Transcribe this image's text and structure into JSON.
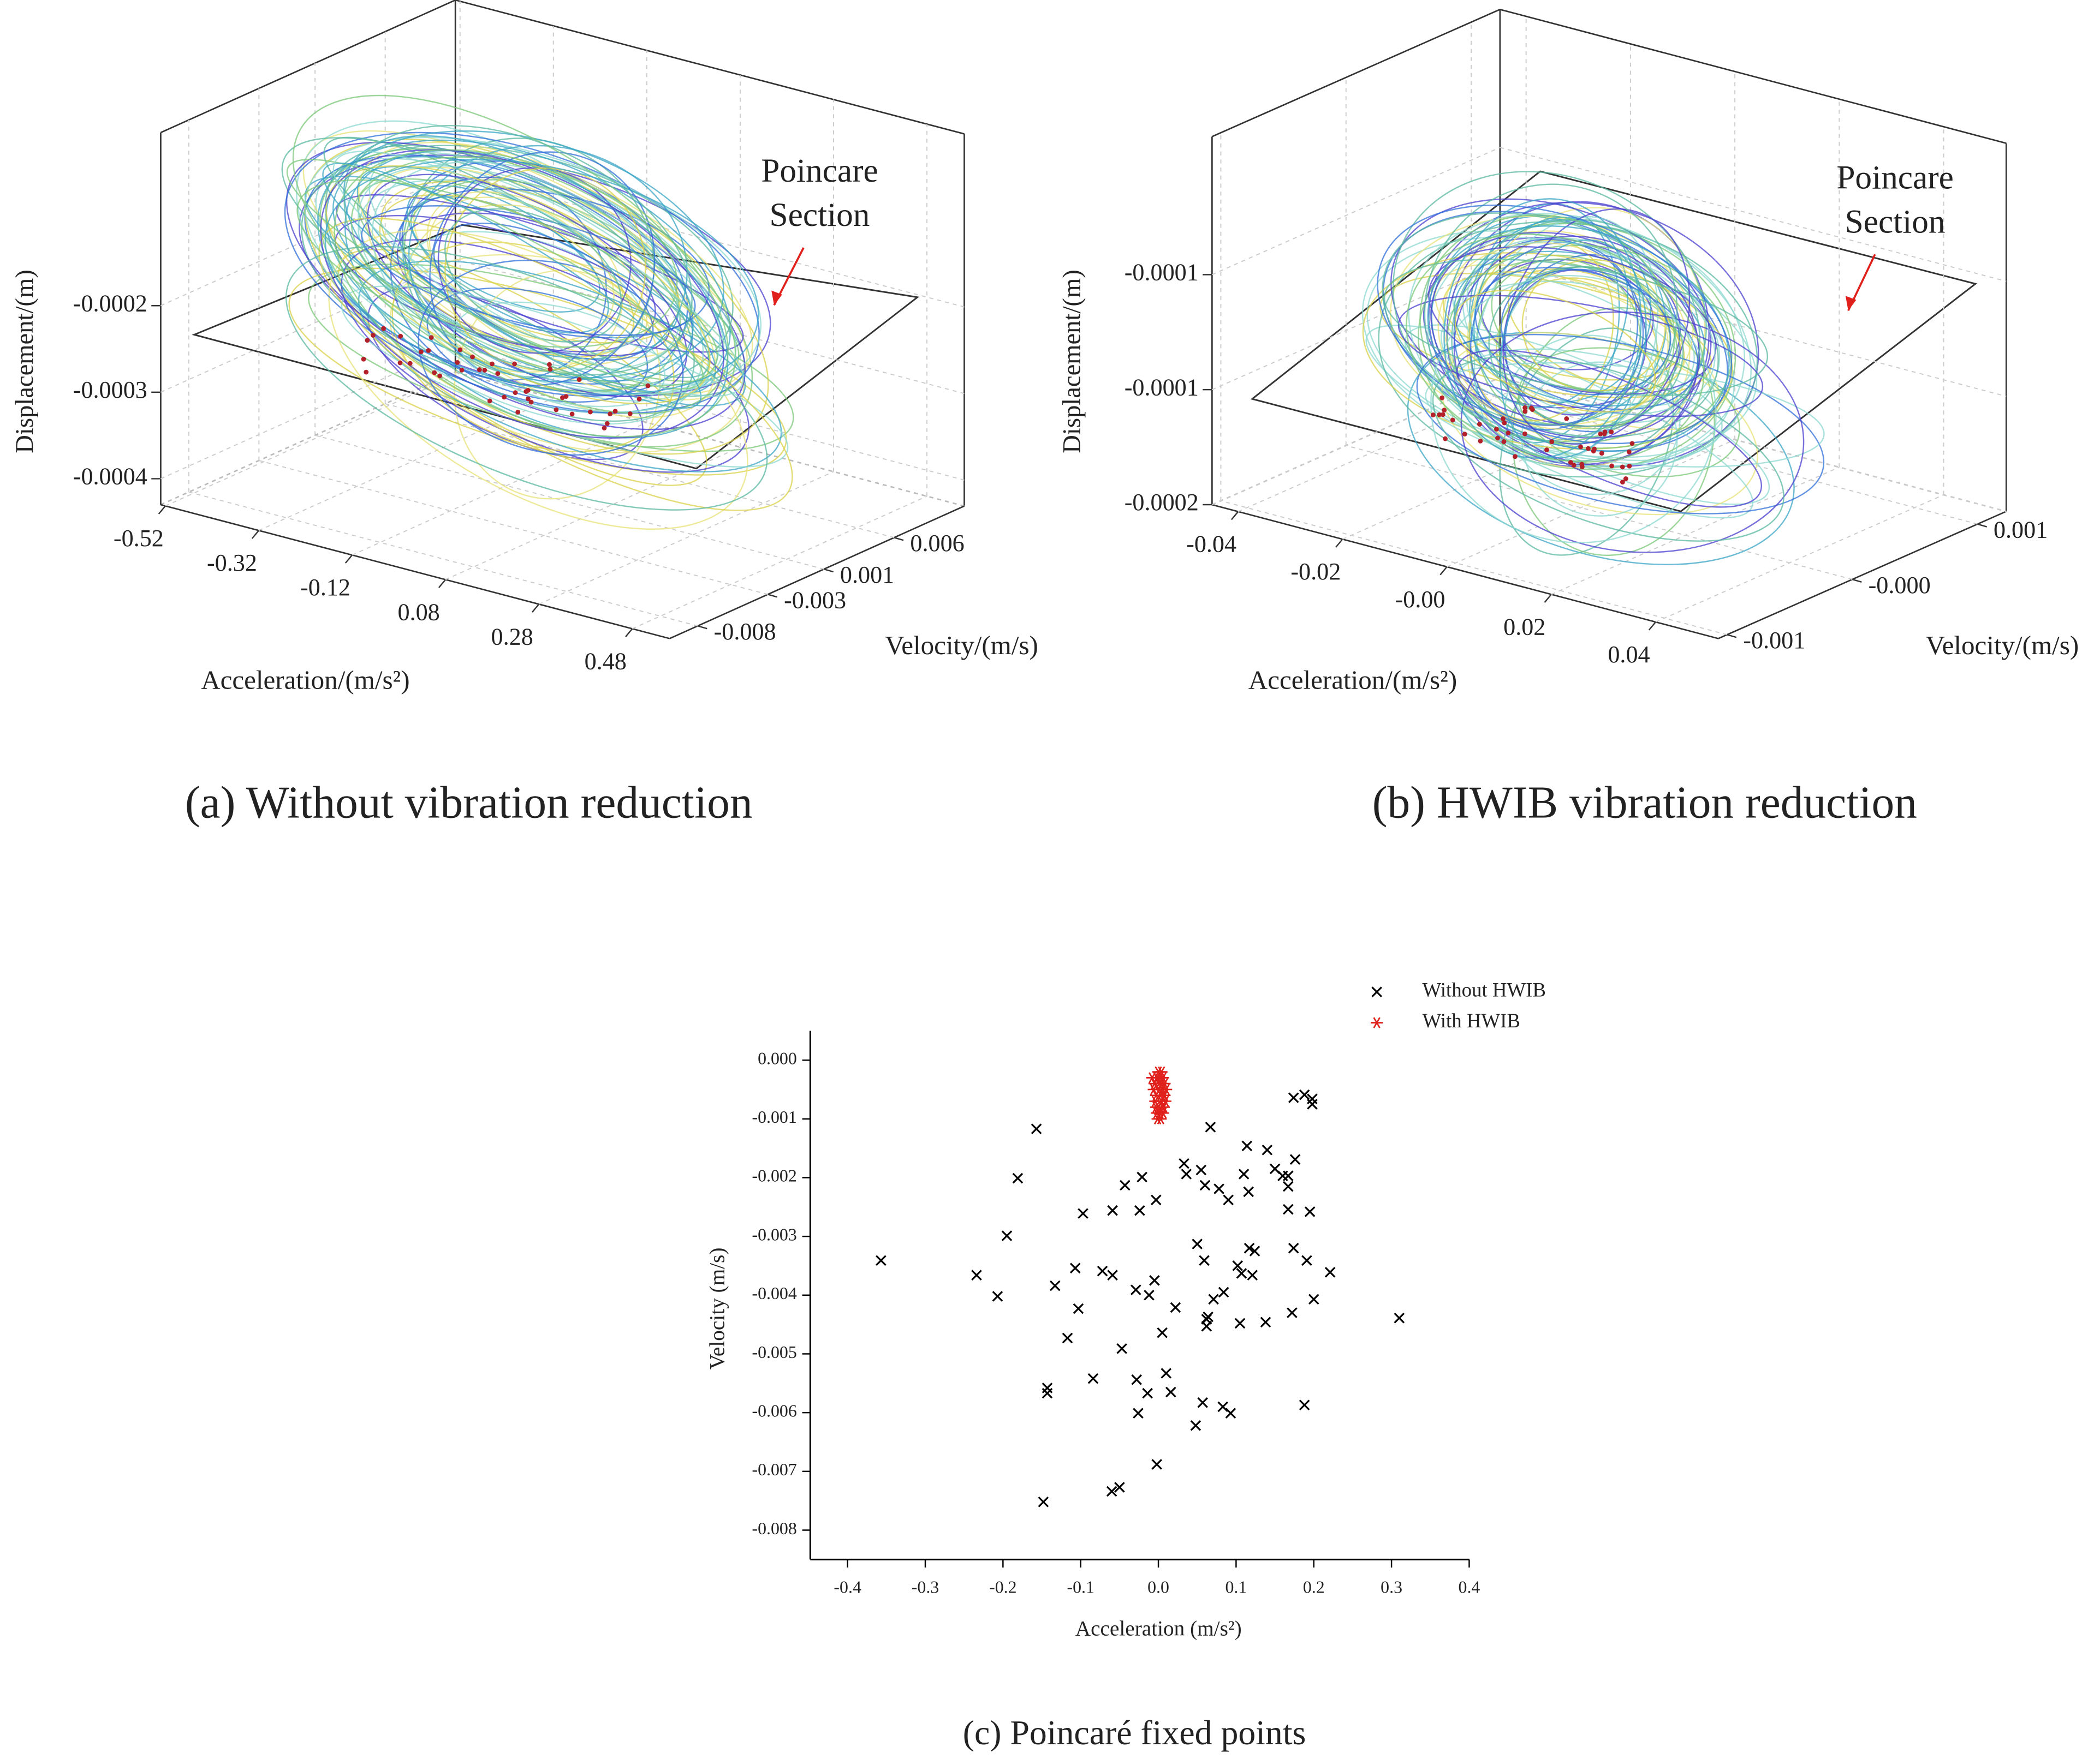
{
  "chart_data": [
    {
      "type": "line3d",
      "caption": "(a) Without vibration reduction",
      "annotation": [
        "Poincare",
        "Section"
      ],
      "xlabel": "Acceleration/(m/s²)",
      "ylabel": "Velocity/(m/s)",
      "zlabel": "Displacement/(m)",
      "xlim": [
        -0.53,
        0.56
      ],
      "xticks": [
        -0.52,
        -0.32,
        -0.12,
        0.08,
        0.28,
        0.48
      ],
      "ylim": [
        -0.01,
        0.011
      ],
      "yticks": [
        -0.008,
        -0.003,
        0.001,
        0.006
      ],
      "zlim": [
        -0.00043,
        0
      ],
      "zticks": [
        -0.0002,
        -0.0003,
        -0.0004
      ],
      "grid": true
    },
    {
      "type": "line3d",
      "caption": "(b) HWIB vibration reduction",
      "annotation": [
        "Poincare",
        "Section"
      ],
      "xlabel": "Acceleration/(m/s²)",
      "ylabel": "Velocity/(m/s)",
      "zlabel": "Displacement/(m)",
      "xlim": [
        -0.045,
        0.052
      ],
      "xticks": [
        -0.04,
        -0.02,
        {
          "value": 0,
          "label": "-0.00"
        },
        0.02,
        0.04
      ],
      "ylim": [
        -0.00107,
        0.00123
      ],
      "yticks": [
        -0.001,
        {
          "value": 0,
          "label": "-0.000"
        },
        0.001
      ],
      "zlim": [
        -0.00016,
        -6.4e-05
      ],
      "zticks": [
        {
          "value": -0.0001,
          "label": "-0.0001"
        },
        {
          "value": -0.00013,
          "label": "-0.0001"
        },
        {
          "value": -0.00016,
          "label": "-0.0002"
        }
      ],
      "grid": true
    },
    {
      "type": "scatter",
      "caption": "(c) Poincaré fixed points",
      "xlabel": "Acceleration (m/s²)",
      "ylabel": "Velocity (m/s)",
      "xlim": [
        -0.448,
        0.4
      ],
      "xticks": [
        -0.4,
        -0.3,
        -0.2,
        -0.1,
        {
          "value": 0,
          "label": "0.0"
        },
        0.1,
        0.2,
        0.3,
        0.4
      ],
      "ylim": [
        0.0005,
        -0.0085
      ],
      "yticks": [
        {
          "value": 0,
          "label": "0.000"
        },
        -0.001,
        -0.002,
        -0.003,
        -0.004,
        -0.005,
        -0.006,
        -0.007,
        -0.008
      ],
      "grid": false,
      "legend": "upper right",
      "series": [
        {
          "name": "Without HWIB",
          "color": "#000000",
          "marker": "x",
          "x": [
            -0.357,
            -0.234,
            -0.207,
            -0.195,
            -0.181,
            -0.157,
            -0.148,
            -0.143,
            -0.143,
            -0.133,
            -0.117,
            -0.107,
            -0.103,
            -0.097,
            -0.084,
            -0.072,
            -0.06,
            -0.059,
            -0.059,
            -0.05,
            -0.047,
            -0.043,
            -0.029,
            -0.028,
            -0.026,
            -0.024,
            -0.021,
            -0.014,
            -0.012,
            -0.005,
            -0.003,
            -0.002,
            0.005,
            0.01,
            0.016,
            0.022,
            0.033,
            0.036,
            0.048,
            0.05,
            0.055,
            0.057,
            0.059,
            0.06,
            0.062,
            0.062,
            0.064,
            0.067,
            0.071,
            0.078,
            0.083,
            0.084,
            0.09,
            0.093,
            0.102,
            0.105,
            0.107,
            0.114,
            0.11,
            0.116,
            0.117,
            0.121,
            0.124,
            0.138,
            0.14,
            0.15,
            0.16,
            0.167,
            0.167,
            0.167,
            0.172,
            0.174,
            0.174,
            0.176,
            0.188,
            0.188,
            0.191,
            0.195,
            0.198,
            0.198,
            0.2,
            0.221,
            0.31
          ],
          "values": [
            -0.00341,
            -0.00366,
            -0.00402,
            -0.00299,
            -0.00201,
            -0.00117,
            -0.00752,
            -0.00558,
            -0.00567,
            -0.00384,
            -0.00473,
            -0.00354,
            -0.00423,
            -0.00261,
            -0.00542,
            -0.00359,
            -0.00734,
            -0.00256,
            -0.00366,
            -0.00727,
            -0.00491,
            -0.00213,
            -0.00391,
            -0.00544,
            -0.00601,
            -0.00256,
            -0.00199,
            -0.00567,
            -0.004,
            -0.00375,
            -0.00238,
            -0.00688,
            -0.00464,
            -0.00533,
            -0.00565,
            -0.00421,
            -0.00176,
            -0.00194,
            -0.00622,
            -0.00313,
            -0.00187,
            -0.00583,
            -0.00341,
            -0.00213,
            -0.00453,
            -0.00441,
            -0.00437,
            -0.00114,
            -0.00407,
            -0.00219,
            -0.0059,
            -0.00395,
            -0.00238,
            -0.00601,
            -0.0035,
            -0.00448,
            -0.00363,
            -0.00146,
            -0.00194,
            -0.00224,
            -0.0032,
            -0.00366,
            -0.00325,
            -0.00446,
            -0.00153,
            -0.00185,
            -0.00197,
            -0.00197,
            -0.00254,
            -0.00215,
            -0.0043,
            -0.0032,
            -0.00064,
            -0.00169,
            -0.00587,
            -0.00059,
            -0.00341,
            -0.00258,
            -0.00066,
            -0.00075,
            -0.00407,
            -0.00361,
            -0.00439
          ]
        },
        {
          "name": "With HWIB",
          "color": "#e0201b",
          "marker": "asterisk",
          "x": [
            -0.008,
            -0.005,
            -0.002,
            0,
            0.002,
            0.004,
            0.006,
            0.008,
            0.01,
            -0.006,
            -0.003,
            0.001,
            0.003,
            0.005,
            0.007,
            0.009,
            -0.004,
            0,
            0.004,
            0.007,
            -0.002,
            0.002,
            0.006,
            -0.001,
            0.003,
            0.005,
            0.001,
            0.004,
            -0.003,
            0.008
          ],
          "values": [
            -0.0003,
            -0.0004,
            -0.0003,
            -0.0002,
            -0.0003,
            -0.0004,
            -0.0003,
            -0.0004,
            -0.0005,
            -0.0005,
            -0.0006,
            -0.0005,
            -0.0006,
            -0.0005,
            -0.0006,
            -0.0007,
            -0.0007,
            -0.0008,
            -0.0007,
            -0.0008,
            -0.0009,
            -0.0009,
            -0.0009,
            -0.001,
            -0.001,
            -0.0008,
            -0.0004,
            -0.0002,
            -0.0008,
            -0.0006
          ]
        }
      ]
    }
  ]
}
